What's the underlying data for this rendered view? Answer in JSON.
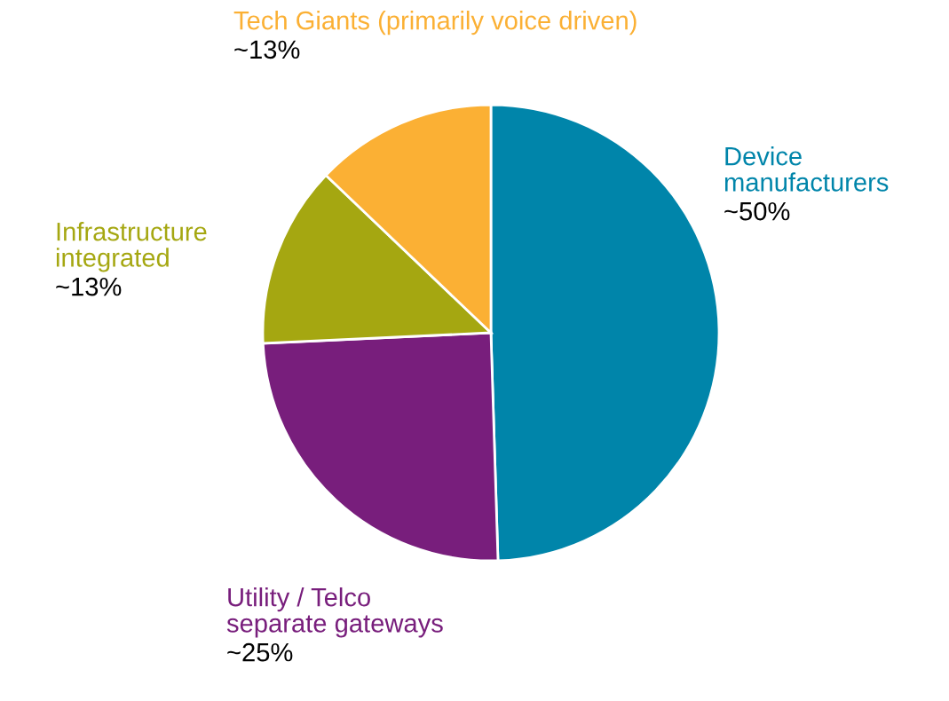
{
  "chart_data": {
    "type": "pie",
    "categories": [
      "Device\nmanufacturers",
      "Utility / Telco\nseparate gateways",
      "Infrastructure\nintegrated",
      "Tech Giants (primarily voice driven)"
    ],
    "values": [
      50,
      25,
      13,
      13
    ],
    "value_labels": [
      "~50%",
      "~25%",
      "~13%",
      "~13%"
    ],
    "colors": [
      "#0085aa",
      "#781e7c",
      "#a5a711",
      "#fbb034"
    ],
    "legend": false
  }
}
